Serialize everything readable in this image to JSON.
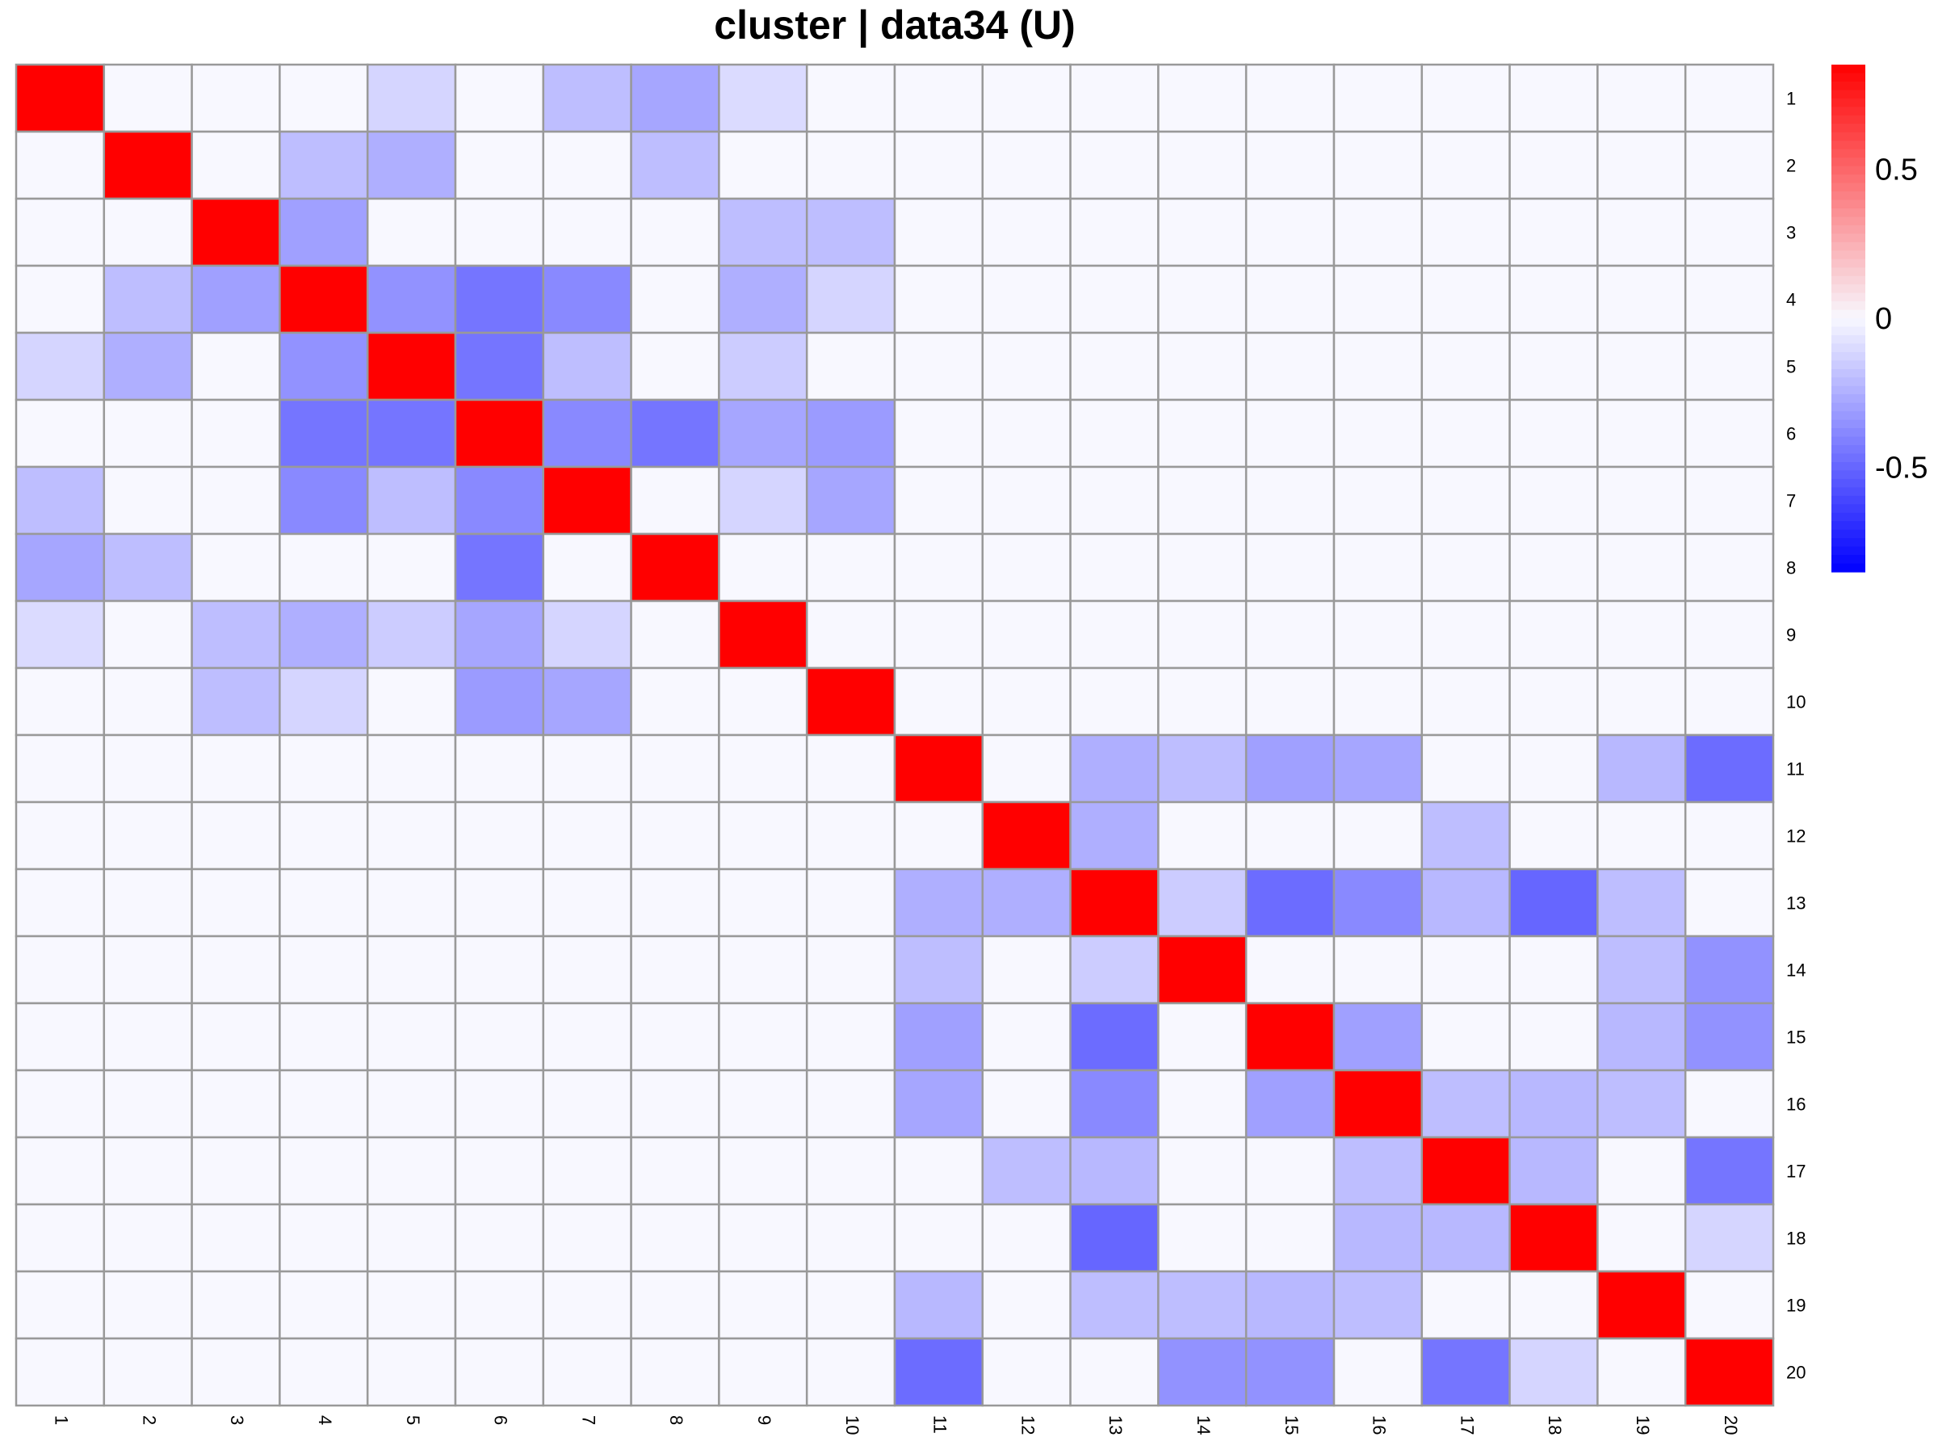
{
  "chart_data": {
    "type": "heatmap",
    "title": "cluster | data34 (U)",
    "row_labels": [
      "1",
      "2",
      "3",
      "4",
      "5",
      "6",
      "7",
      "8",
      "9",
      "10",
      "11",
      "12",
      "13",
      "14",
      "15",
      "16",
      "17",
      "18",
      "19",
      "20"
    ],
    "col_labels": [
      "1",
      "2",
      "3",
      "4",
      "5",
      "6",
      "7",
      "8",
      "9",
      "10",
      "11",
      "12",
      "13",
      "14",
      "15",
      "16",
      "17",
      "18",
      "19",
      "20"
    ],
    "values": [
      [
        1,
        0,
        0,
        0,
        -0.12,
        0,
        -0.2,
        -0.28,
        -0.1,
        0,
        0,
        0,
        0,
        0,
        0,
        0,
        0,
        0,
        0,
        0
      ],
      [
        0,
        1,
        0,
        -0.2,
        -0.25,
        0,
        0,
        -0.2,
        0,
        0,
        0,
        0,
        0,
        0,
        0,
        0,
        0,
        0,
        0,
        0
      ],
      [
        0,
        0,
        1,
        -0.3,
        0,
        0,
        0,
        0,
        -0.2,
        -0.2,
        0,
        0,
        0,
        0,
        0,
        0,
        0,
        0,
        0,
        0
      ],
      [
        0,
        -0.2,
        -0.3,
        1,
        -0.35,
        -0.45,
        -0.38,
        0,
        -0.25,
        -0.12,
        0,
        0,
        0,
        0,
        0,
        0,
        0,
        0,
        0,
        0
      ],
      [
        -0.12,
        -0.25,
        0,
        -0.35,
        1,
        -0.45,
        -0.2,
        0,
        -0.15,
        0,
        0,
        0,
        0,
        0,
        0,
        0,
        0,
        0,
        0,
        0
      ],
      [
        0,
        0,
        0,
        -0.45,
        -0.45,
        1,
        -0.38,
        -0.45,
        -0.28,
        -0.32,
        0,
        0,
        0,
        0,
        0,
        0,
        0,
        0,
        0,
        0
      ],
      [
        -0.2,
        0,
        0,
        -0.38,
        -0.2,
        -0.38,
        1,
        0,
        -0.12,
        -0.28,
        0,
        0,
        0,
        0,
        0,
        0,
        0,
        0,
        0,
        0
      ],
      [
        -0.28,
        -0.2,
        0,
        0,
        0,
        -0.45,
        0,
        1,
        0,
        0,
        0,
        0,
        0,
        0,
        0,
        0,
        0,
        0,
        0,
        0
      ],
      [
        -0.1,
        0,
        -0.2,
        -0.25,
        -0.15,
        -0.28,
        -0.12,
        0,
        1,
        0,
        0,
        0,
        0,
        0,
        0,
        0,
        0,
        0,
        0,
        0
      ],
      [
        0,
        0,
        -0.2,
        -0.12,
        0,
        -0.32,
        -0.28,
        0,
        0,
        1,
        0,
        0,
        0,
        0,
        0,
        0,
        0,
        0,
        0,
        0
      ],
      [
        0,
        0,
        0,
        0,
        0,
        0,
        0,
        0,
        0,
        0,
        1,
        0,
        -0.25,
        -0.2,
        -0.3,
        -0.28,
        0,
        0,
        -0.22,
        -0.48
      ],
      [
        0,
        0,
        0,
        0,
        0,
        0,
        0,
        0,
        0,
        0,
        0,
        1,
        -0.25,
        0,
        0,
        0,
        -0.2,
        0,
        0,
        0
      ],
      [
        0,
        0,
        0,
        0,
        0,
        0,
        0,
        0,
        0,
        0,
        -0.25,
        -0.25,
        1,
        -0.15,
        -0.48,
        -0.38,
        -0.22,
        -0.5,
        -0.2,
        0
      ],
      [
        0,
        0,
        0,
        0,
        0,
        0,
        0,
        0,
        0,
        0,
        -0.2,
        0,
        -0.15,
        1,
        0,
        0,
        0,
        0,
        -0.2,
        -0.35
      ],
      [
        0,
        0,
        0,
        0,
        0,
        0,
        0,
        0,
        0,
        0,
        -0.3,
        0,
        -0.48,
        0,
        1,
        -0.3,
        0,
        0,
        -0.22,
        -0.35
      ],
      [
        0,
        0,
        0,
        0,
        0,
        0,
        0,
        0,
        0,
        0,
        -0.28,
        0,
        -0.38,
        0,
        -0.3,
        1,
        -0.2,
        -0.22,
        -0.2,
        0
      ],
      [
        0,
        0,
        0,
        0,
        0,
        0,
        0,
        0,
        0,
        0,
        0,
        -0.2,
        -0.22,
        0,
        0,
        -0.2,
        1,
        -0.22,
        0,
        -0.45
      ],
      [
        0,
        0,
        0,
        0,
        0,
        0,
        0,
        0,
        0,
        0,
        0,
        0,
        -0.5,
        0,
        0,
        -0.22,
        -0.22,
        1,
        0,
        -0.12
      ],
      [
        0,
        0,
        0,
        0,
        0,
        0,
        0,
        0,
        0,
        0,
        -0.22,
        0,
        -0.2,
        -0.2,
        -0.22,
        -0.2,
        0,
        0,
        1,
        0
      ],
      [
        0,
        0,
        0,
        0,
        0,
        0,
        0,
        0,
        0,
        0,
        -0.48,
        0,
        0,
        -0.35,
        -0.35,
        0,
        -0.45,
        -0.12,
        0,
        1
      ]
    ],
    "color_scale": {
      "min": -0.85,
      "max": 0.85,
      "low_color": "#0000ff",
      "mid_color": "#f8f8ff",
      "high_color": "#ff0000",
      "diagonal_color": "#ff0000"
    },
    "legend": {
      "placement": "right",
      "ticks": [
        {
          "value": 0.5,
          "label": "0.5"
        },
        {
          "value": 0,
          "label": "0"
        },
        {
          "value": -0.5,
          "label": "-0.5"
        }
      ]
    },
    "cell_border_color": "#999999"
  }
}
